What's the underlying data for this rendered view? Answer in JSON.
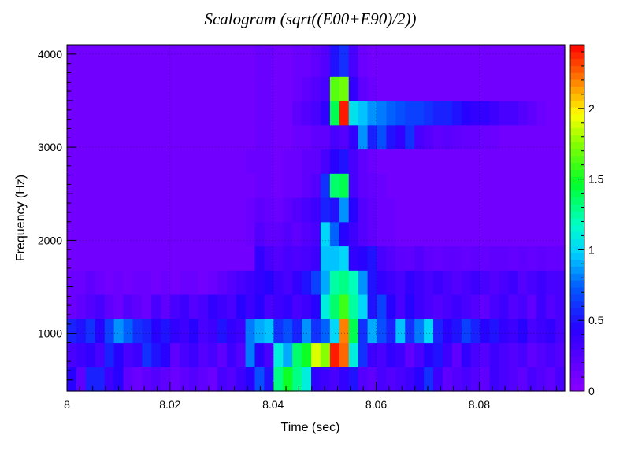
{
  "chart_data": {
    "type": "heatmap",
    "title": "Scalogram (sqrt((E00+E90)/2))",
    "xlabel": "Time (sec)",
    "ylabel": "Frequency (Hz)",
    "xlim": [
      8.0,
      8.0966
    ],
    "ylim": [
      380,
      4100
    ],
    "x_ticks": [
      {
        "value": 8.0,
        "label": "8"
      },
      {
        "value": 8.02,
        "label": "8.02"
      },
      {
        "value": 8.04,
        "label": "8.04"
      },
      {
        "value": 8.06,
        "label": "8.06"
      },
      {
        "value": 8.08,
        "label": "8.08"
      }
    ],
    "y_ticks": [
      {
        "value": 1000,
        "label": "1000"
      },
      {
        "value": 2000,
        "label": "2000"
      },
      {
        "value": 3000,
        "label": "3000"
      },
      {
        "value": 4000,
        "label": "4000"
      }
    ],
    "colorbar": {
      "range": [
        0,
        2.45
      ],
      "ticks": [
        {
          "value": 0,
          "label": "0"
        },
        {
          "value": 0.5,
          "label": "0.5"
        },
        {
          "value": 1,
          "label": "1"
        },
        {
          "value": 1.5,
          "label": "1.5"
        },
        {
          "value": 2,
          "label": "2"
        }
      ],
      "colormap": "rainbow (violet-blue-cyan-green-yellow-red)"
    },
    "grid": true,
    "z_values_by_frequency_band": [
      {
        "band_hz": [
          380,
          640
        ],
        "z": [
          0.45,
          0.2,
          0.55,
          0.55,
          0.35,
          0.45,
          0.2,
          0.15,
          0.2,
          0.25,
          0.2,
          0.15,
          0.2,
          0.25,
          0.2,
          0.15,
          0.3,
          0.25,
          0.35,
          0.45,
          0.7,
          0.5,
          1.3,
          1.5,
          1.3,
          1.1,
          0.4,
          0.35,
          0.3,
          0.4,
          0.5,
          0.25,
          0.2,
          0.3,
          0.25,
          0.3,
          0.35,
          0.45,
          0.6,
          0.35,
          0.2,
          0.25,
          0.3,
          0.25,
          0.2,
          0.35,
          0.3,
          0.25,
          0.2,
          0.3,
          0.25,
          0.2,
          0.3
        ]
      },
      {
        "band_hz": [
          640,
          900
        ],
        "z": [
          0.3,
          0.35,
          0.4,
          0.3,
          0.55,
          0.45,
          0.3,
          0.35,
          0.6,
          0.5,
          0.45,
          0.2,
          0.3,
          0.35,
          0.25,
          0.3,
          0.2,
          0.35,
          0.25,
          0.8,
          0.45,
          0.3,
          1.1,
          0.9,
          1.35,
          1.5,
          1.9,
          1.75,
          2.4,
          2.25,
          1.1,
          0.6,
          0.35,
          0.3,
          0.4,
          0.35,
          0.2,
          0.3,
          0.45,
          0.5,
          0.35,
          0.2,
          0.4,
          0.3,
          0.25,
          0.35,
          0.3,
          0.25,
          0.3,
          0.2,
          0.25,
          0.3,
          0.25
        ]
      },
      {
        "band_hz": [
          900,
          1160
        ],
        "z": [
          0.55,
          0.5,
          0.6,
          0.45,
          0.65,
          0.85,
          0.75,
          0.6,
          0.55,
          0.45,
          0.5,
          0.4,
          0.35,
          0.45,
          0.3,
          0.35,
          0.5,
          0.4,
          0.35,
          0.8,
          0.9,
          0.95,
          0.6,
          0.7,
          0.55,
          0.85,
          0.6,
          0.75,
          1.0,
          2.2,
          1.4,
          0.6,
          0.9,
          0.7,
          0.55,
          0.95,
          0.6,
          0.8,
          1.0,
          0.55,
          0.45,
          0.5,
          0.65,
          0.55,
          0.45,
          0.5,
          0.4,
          0.35,
          0.45,
          0.3,
          0.35,
          0.4,
          0.3
        ]
      },
      {
        "band_hz": [
          1160,
          1420
        ],
        "z": [
          0.15,
          0.2,
          0.25,
          0.3,
          0.2,
          0.15,
          0.25,
          0.2,
          0.15,
          0.3,
          0.2,
          0.3,
          0.35,
          0.25,
          0.3,
          0.4,
          0.35,
          0.3,
          0.45,
          0.35,
          0.45,
          0.3,
          0.35,
          0.4,
          0.3,
          0.35,
          0.45,
          1.1,
          1.35,
          1.6,
          1.25,
          1.0,
          0.5,
          0.65,
          0.45,
          0.3,
          0.45,
          0.35,
          0.3,
          0.25,
          0.3,
          0.35,
          0.3,
          0.25,
          0.2,
          0.3,
          0.35,
          0.25,
          0.3,
          0.2,
          0.35,
          0.25,
          0.3
        ]
      },
      {
        "band_hz": [
          1420,
          1680
        ],
        "z": [
          0.15,
          0.15,
          0.2,
          0.15,
          0.12,
          0.15,
          0.12,
          0.15,
          0.15,
          0.12,
          0.15,
          0.12,
          0.15,
          0.15,
          0.12,
          0.15,
          0.2,
          0.25,
          0.3,
          0.35,
          0.4,
          0.45,
          0.35,
          0.3,
          0.4,
          0.5,
          0.65,
          0.9,
          1.25,
          1.3,
          1.2,
          0.85,
          0.5,
          0.4,
          0.35,
          0.3,
          0.4,
          0.35,
          0.3,
          0.35,
          0.3,
          0.25,
          0.3,
          0.35,
          0.3,
          0.25,
          0.3,
          0.35,
          0.25,
          0.3,
          0.35,
          0.3,
          0.3
        ]
      },
      {
        "band_hz": [
          1680,
          1940
        ],
        "z": [
          0.12,
          0.12,
          0.12,
          0.12,
          0.12,
          0.12,
          0.12,
          0.12,
          0.12,
          0.12,
          0.12,
          0.12,
          0.12,
          0.12,
          0.12,
          0.12,
          0.12,
          0.12,
          0.12,
          0.12,
          0.4,
          0.3,
          0.25,
          0.3,
          0.28,
          0.3,
          0.35,
          0.95,
          0.95,
          1.0,
          0.4,
          0.45,
          0.5,
          0.3,
          0.25,
          0.2,
          0.2,
          0.25,
          0.2,
          0.18,
          0.2,
          0.2,
          0.18,
          0.2,
          0.18,
          0.2,
          0.2,
          0.18,
          0.2,
          0.18,
          0.2,
          0.18,
          0.18
        ]
      },
      {
        "band_hz": [
          1940,
          2200
        ],
        "z": [
          0.12,
          0.12,
          0.12,
          0.12,
          0.12,
          0.12,
          0.12,
          0.12,
          0.12,
          0.12,
          0.12,
          0.12,
          0.12,
          0.12,
          0.12,
          0.12,
          0.12,
          0.12,
          0.12,
          0.15,
          0.25,
          0.2,
          0.2,
          0.25,
          0.2,
          0.25,
          0.3,
          1.0,
          0.75,
          0.45,
          0.35,
          0.25,
          0.2,
          0.15,
          0.15,
          0.12,
          0.12,
          0.12,
          0.12,
          0.12,
          0.12,
          0.12,
          0.12,
          0.12,
          0.12,
          0.12,
          0.12,
          0.12,
          0.12,
          0.12,
          0.12,
          0.12,
          0.12
        ]
      },
      {
        "band_hz": [
          2200,
          2460
        ],
        "z": [
          0.12,
          0.12,
          0.12,
          0.12,
          0.12,
          0.12,
          0.12,
          0.12,
          0.12,
          0.12,
          0.12,
          0.12,
          0.12,
          0.12,
          0.12,
          0.12,
          0.12,
          0.12,
          0.12,
          0.15,
          0.2,
          0.18,
          0.15,
          0.2,
          0.25,
          0.3,
          0.35,
          0.55,
          0.5,
          0.85,
          0.45,
          0.25,
          0.2,
          0.15,
          0.15,
          0.12,
          0.12,
          0.12,
          0.12,
          0.12,
          0.12,
          0.12,
          0.12,
          0.12,
          0.12,
          0.12,
          0.12,
          0.12,
          0.12,
          0.12,
          0.12,
          0.12,
          0.12
        ]
      },
      {
        "band_hz": [
          2460,
          2720
        ],
        "z": [
          0.12,
          0.12,
          0.12,
          0.12,
          0.12,
          0.12,
          0.12,
          0.12,
          0.12,
          0.12,
          0.12,
          0.12,
          0.12,
          0.12,
          0.12,
          0.12,
          0.12,
          0.12,
          0.12,
          0.12,
          0.15,
          0.15,
          0.12,
          0.15,
          0.15,
          0.2,
          0.25,
          0.6,
          1.35,
          1.4,
          0.3,
          0.2,
          0.18,
          0.15,
          0.12,
          0.12,
          0.12,
          0.12,
          0.12,
          0.12,
          0.12,
          0.12,
          0.12,
          0.12,
          0.12,
          0.12,
          0.12,
          0.12,
          0.12,
          0.12,
          0.12,
          0.12,
          0.12
        ]
      },
      {
        "band_hz": [
          2720,
          2980
        ],
        "z": [
          0.12,
          0.12,
          0.12,
          0.12,
          0.12,
          0.12,
          0.12,
          0.12,
          0.12,
          0.12,
          0.12,
          0.12,
          0.12,
          0.12,
          0.12,
          0.12,
          0.12,
          0.12,
          0.12,
          0.15,
          0.15,
          0.15,
          0.12,
          0.15,
          0.15,
          0.2,
          0.2,
          0.3,
          0.45,
          0.5,
          0.3,
          0.2,
          0.15,
          0.12,
          0.12,
          0.12,
          0.12,
          0.12,
          0.12,
          0.12,
          0.12,
          0.12,
          0.12,
          0.12,
          0.12,
          0.12,
          0.12,
          0.12,
          0.12,
          0.12,
          0.12,
          0.12,
          0.12
        ]
      },
      {
        "band_hz": [
          2980,
          3240
        ],
        "z": [
          0.12,
          0.12,
          0.12,
          0.12,
          0.12,
          0.12,
          0.12,
          0.12,
          0.12,
          0.12,
          0.12,
          0.12,
          0.12,
          0.12,
          0.12,
          0.12,
          0.12,
          0.12,
          0.12,
          0.12,
          0.15,
          0.15,
          0.12,
          0.12,
          0.15,
          0.15,
          0.2,
          0.2,
          0.3,
          0.25,
          0.4,
          0.85,
          0.55,
          0.7,
          0.5,
          0.4,
          0.6,
          0.3,
          0.25,
          0.2,
          0.22,
          0.2,
          0.18,
          0.18,
          0.15,
          0.15,
          0.12,
          0.12,
          0.12,
          0.12,
          0.12,
          0.12,
          0.12
        ]
      },
      {
        "band_hz": [
          3240,
          3500
        ],
        "z": [
          0.12,
          0.12,
          0.12,
          0.12,
          0.12,
          0.12,
          0.12,
          0.12,
          0.12,
          0.12,
          0.12,
          0.12,
          0.12,
          0.12,
          0.12,
          0.12,
          0.12,
          0.12,
          0.12,
          0.12,
          0.15,
          0.15,
          0.12,
          0.12,
          0.2,
          0.25,
          0.3,
          0.4,
          1.4,
          2.4,
          1.05,
          0.95,
          0.85,
          0.8,
          0.75,
          0.7,
          0.65,
          0.65,
          0.6,
          0.55,
          0.55,
          0.5,
          0.45,
          0.4,
          0.4,
          0.35,
          0.3,
          0.3,
          0.25,
          0.2,
          0.15,
          0.12,
          0.12
        ]
      },
      {
        "band_hz": [
          3500,
          3760
        ],
        "z": [
          0.12,
          0.12,
          0.12,
          0.12,
          0.12,
          0.12,
          0.12,
          0.12,
          0.12,
          0.12,
          0.12,
          0.12,
          0.12,
          0.12,
          0.12,
          0.12,
          0.12,
          0.12,
          0.12,
          0.12,
          0.15,
          0.15,
          0.12,
          0.12,
          0.15,
          0.2,
          0.25,
          0.3,
          1.65,
          1.7,
          0.4,
          0.2,
          0.15,
          0.12,
          0.12,
          0.12,
          0.12,
          0.12,
          0.12,
          0.12,
          0.12,
          0.12,
          0.12,
          0.12,
          0.12,
          0.12,
          0.12,
          0.12,
          0.12,
          0.12,
          0.12,
          0.12,
          0.12
        ]
      },
      {
        "band_hz": [
          3760,
          4100
        ],
        "z": [
          0.12,
          0.12,
          0.12,
          0.12,
          0.12,
          0.12,
          0.12,
          0.12,
          0.12,
          0.12,
          0.12,
          0.12,
          0.12,
          0.12,
          0.12,
          0.12,
          0.12,
          0.12,
          0.12,
          0.12,
          0.15,
          0.15,
          0.12,
          0.12,
          0.15,
          0.15,
          0.2,
          0.25,
          0.5,
          0.6,
          0.3,
          0.15,
          0.12,
          0.12,
          0.12,
          0.12,
          0.12,
          0.12,
          0.12,
          0.12,
          0.12,
          0.12,
          0.12,
          0.12,
          0.12,
          0.12,
          0.12,
          0.12,
          0.12,
          0.12,
          0.12,
          0.12,
          0.12
        ]
      }
    ]
  }
}
